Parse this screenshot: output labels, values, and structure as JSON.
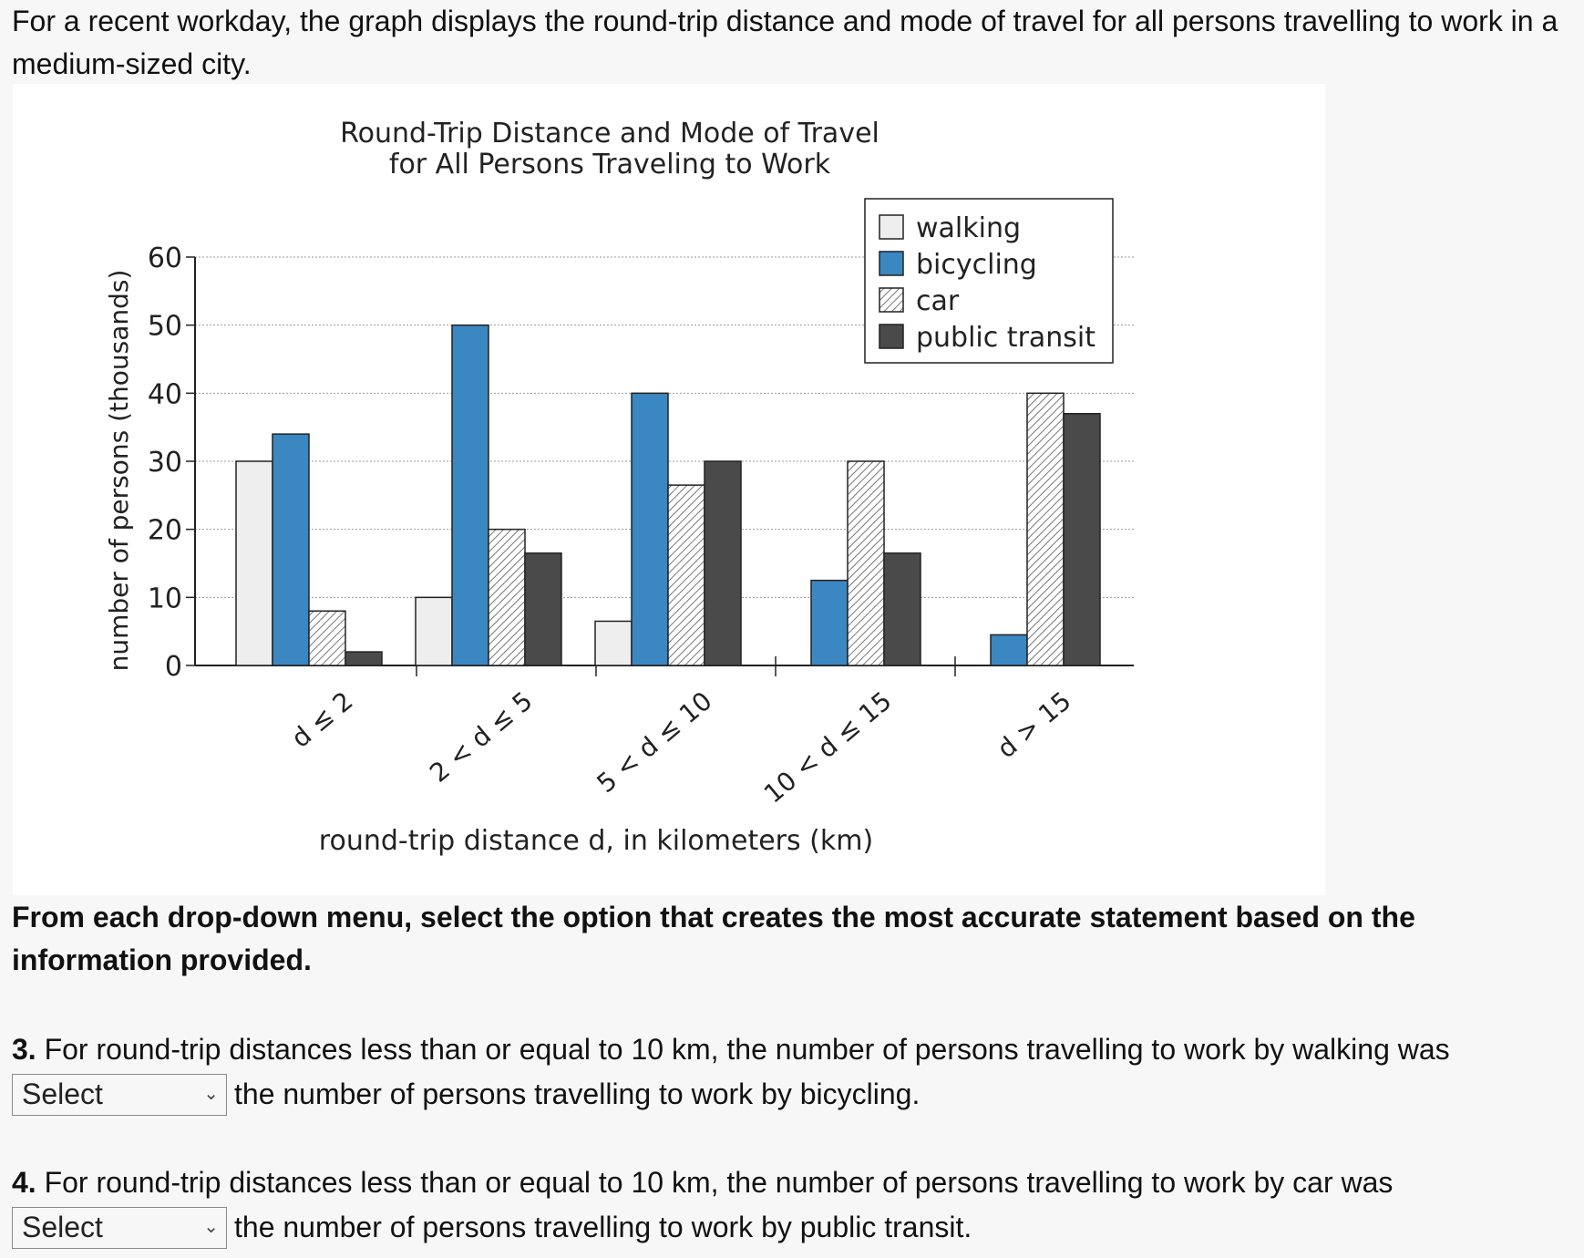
{
  "intro_text": "For a recent workday, the graph displays the round-trip distance and mode of travel for all persons travelling to work in a medium-sized city.",
  "chart_data": {
    "type": "bar",
    "title": [
      "Round-Trip Distance and Mode of Travel",
      "for All Persons Traveling to Work"
    ],
    "xlabel": "round-trip distance d, in kilometers (km)",
    "ylabel": "number of persons (thousands)",
    "ylim": [
      0,
      60
    ],
    "yticks": [
      0,
      10,
      20,
      30,
      40,
      50,
      60
    ],
    "grid": "horizontal dotted",
    "legend_position": "top-right",
    "categories": [
      "d ≤ 2",
      "2 < d ≤ 5",
      "5 < d ≤ 10",
      "10 < d ≤ 15",
      "d > 15"
    ],
    "series": [
      {
        "name": "walking",
        "fill": "#eeeeee",
        "pattern": "none",
        "values": [
          30,
          10,
          6.5,
          0,
          0
        ]
      },
      {
        "name": "bicycling",
        "fill": "#3b87c2",
        "pattern": "none",
        "values": [
          34,
          50,
          40,
          12.5,
          4.5
        ]
      },
      {
        "name": "car",
        "fill": "#ffffff",
        "pattern": "hatch",
        "values": [
          8,
          20,
          26.5,
          30,
          40
        ]
      },
      {
        "name": "public transit",
        "fill": "#4a4a4a",
        "pattern": "none",
        "values": [
          2,
          16.5,
          30,
          16.5,
          37
        ]
      }
    ]
  },
  "instruction_text": "From each drop-down menu, select the option that creates the most accurate statement based on the information provided.",
  "questions": [
    {
      "number": "3.",
      "text_before": "For round-trip distances less than or equal to 10 km, the number of persons travelling to work by walking was",
      "select_value": "Select",
      "text_after": "the number of persons travelling to work by bicycling."
    },
    {
      "number": "4.",
      "text_before": "For round-trip distances less than or equal to 10 km, the number of persons travelling to work by car was",
      "select_value": "Select",
      "text_after": "the number of persons travelling to work by public transit."
    }
  ]
}
